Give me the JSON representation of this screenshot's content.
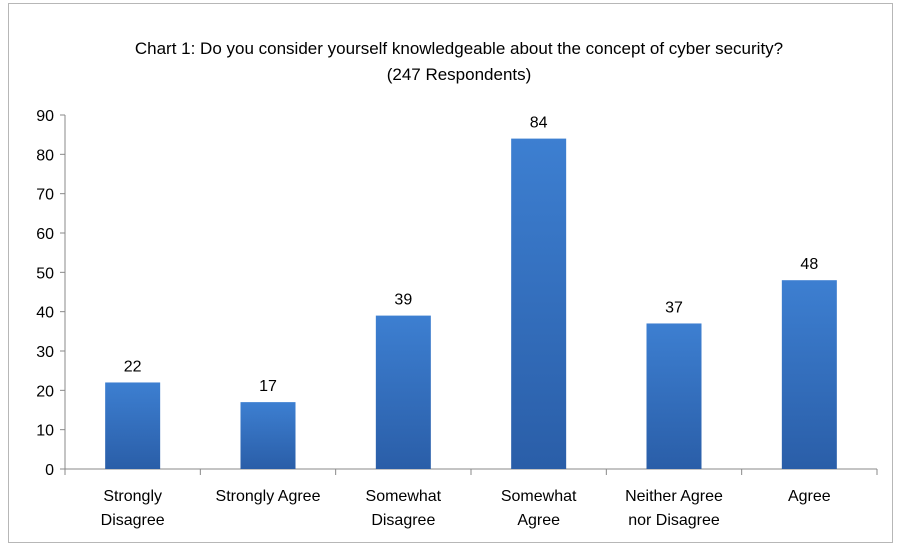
{
  "chart_data": {
    "type": "bar",
    "title": "Chart 1: Do you consider yourself knowledgeable about the concept of cyber security? (247 Respondents)",
    "categories": [
      [
        "Strongly",
        "Disagree"
      ],
      [
        "Strongly Agree"
      ],
      [
        "Somewhat",
        "Disagree"
      ],
      [
        "Somewhat",
        "Agree"
      ],
      [
        "Neither Agree",
        "nor Disagree"
      ],
      [
        "Agree"
      ]
    ],
    "values": [
      22,
      17,
      39,
      84,
      37,
      48
    ],
    "ylim": [
      0,
      90
    ],
    "ytick_step": 10,
    "yticks": [
      "0",
      "10",
      "20",
      "30",
      "40",
      "50",
      "60",
      "70",
      "80",
      "90"
    ],
    "data_labels": [
      "22",
      "17",
      "39",
      "84",
      "37",
      "48"
    ],
    "bar_color_top": "#3d7fd1",
    "bar_color_bottom": "#2a5ea8",
    "grid": false,
    "legend": "none"
  }
}
